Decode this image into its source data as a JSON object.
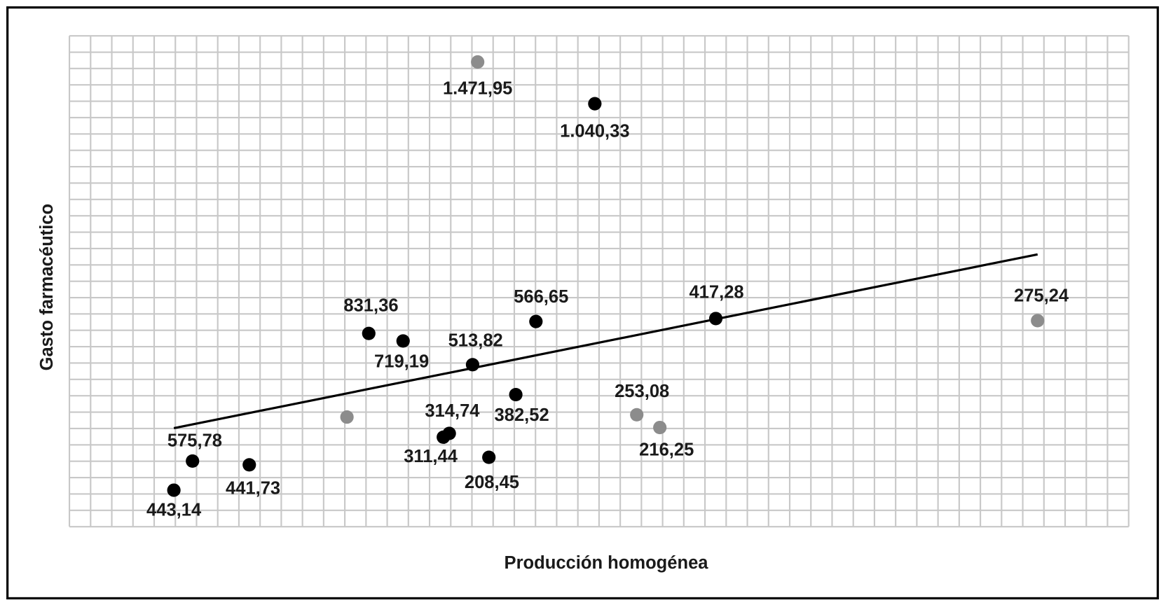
{
  "chart_data": {
    "type": "scatter",
    "x_label": "Producción homogénea",
    "y_label": "Gasto farmacéutico",
    "x": [
      19.27,
      24.8,
      14.13,
      15.75,
      22.02,
      19.03,
      30.51,
      45.7,
      21.07,
      26.78,
      27.87,
      17.93,
      17.65,
      19.8,
      13.1,
      5.81,
      8.49,
      4.93
    ],
    "y": [
      28.4,
      25.85,
      11.81,
      11.35,
      12.54,
      9.9,
      12.72,
      12.59,
      8.07,
      6.84,
      6.06,
      5.7,
      5.47,
      4.24,
      6.7,
      4.01,
      3.78,
      2.23
    ],
    "point_labels": [
      "1.471,95",
      "1.040,33",
      "831,36",
      "719,19",
      "566,65",
      "513,82",
      "417,28",
      "275,24",
      "382,52",
      "253,08",
      "216,25",
      "314,74",
      "311,44",
      "208,45",
      null,
      "575,78",
      "441,73",
      "443,14"
    ],
    "point_colors": [
      "#8c8c8c",
      "#000000",
      "#000000",
      "#000000",
      "#000000",
      "#000000",
      "#000000",
      "#8c8c8c",
      "#000000",
      "#8c8c8c",
      "#8c8c8c",
      "#000000",
      "#000000",
      "#000000",
      "#8c8c8c",
      "#000000",
      "#000000",
      "#000000"
    ],
    "trendline": {
      "x": [
        4.93,
        45.7
      ],
      "y": [
        6.02,
        16.64
      ],
      "color": "#000000"
    },
    "xlim": [
      0,
      50
    ],
    "ylim": [
      0,
      30
    ],
    "xticks": [
      0,
      1,
      2,
      3,
      4,
      5,
      6,
      7,
      8,
      9,
      10,
      11,
      12,
      13,
      14,
      15,
      16,
      17,
      18,
      19,
      20,
      21,
      22,
      23,
      24,
      25,
      26,
      27,
      28,
      29,
      30,
      31,
      32,
      33,
      34,
      35,
      36,
      37,
      38,
      39,
      40,
      41,
      42,
      43,
      44,
      45,
      46,
      47,
      48,
      49,
      50
    ],
    "yticks": [
      0,
      1,
      2,
      3,
      4,
      5,
      6,
      7,
      8,
      9,
      10,
      11,
      12,
      13,
      14,
      15,
      16,
      17,
      18,
      19,
      20,
      21,
      22,
      23,
      24,
      25,
      26,
      27,
      28,
      29,
      30
    ],
    "grid": true
  }
}
